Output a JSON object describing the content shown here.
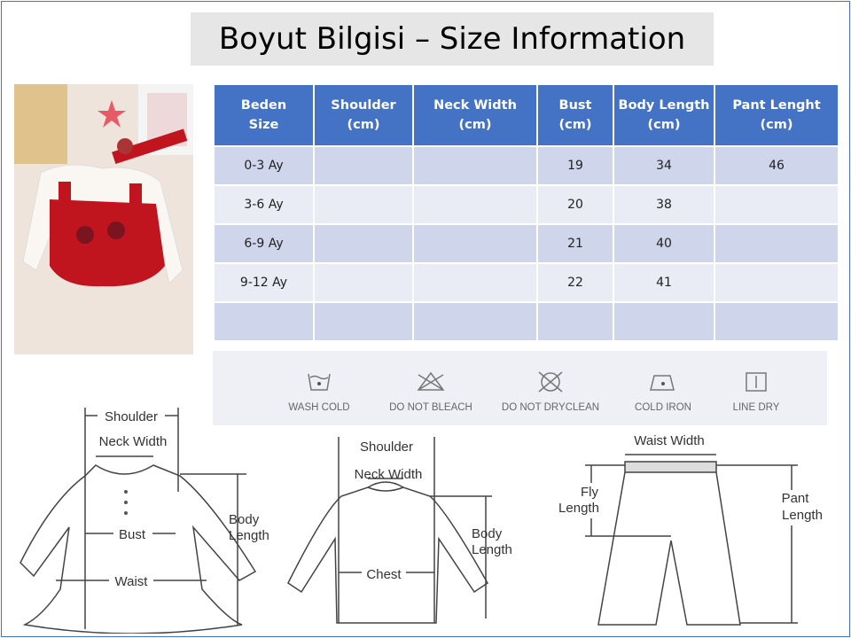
{
  "title": "Boyut Bilgisi – Size Information",
  "table": {
    "headers": [
      [
        "Beden",
        "Size"
      ],
      [
        "Shoulder",
        "(cm)"
      ],
      [
        "Neck Width",
        "(cm)"
      ],
      [
        "Bust",
        "(cm)"
      ],
      [
        "Body Length",
        "(cm)"
      ],
      [
        "Pant Lenght",
        "(cm)"
      ]
    ],
    "rows": [
      [
        "0-3 Ay",
        "",
        "",
        "19",
        "34",
        "46"
      ],
      [
        "3-6 Ay",
        "",
        "",
        "20",
        "38",
        ""
      ],
      [
        "6-9 Ay",
        "",
        "",
        "21",
        "40",
        ""
      ],
      [
        "9-12 Ay",
        "",
        "",
        "22",
        "41",
        ""
      ],
      [
        "",
        "",
        "",
        "",
        "",
        ""
      ]
    ]
  },
  "care": [
    {
      "icon": "wash-cold-icon",
      "label": "WASH COLD"
    },
    {
      "icon": "do-not-bleach-icon",
      "label": "DO NOT BLEACH"
    },
    {
      "icon": "do-not-dryclean-icon",
      "label": "DO NOT DRYCLEAN"
    },
    {
      "icon": "cold-iron-icon",
      "label": "COLD IRON"
    },
    {
      "icon": "line-dry-icon",
      "label": "LINE DRY"
    }
  ],
  "dress": {
    "shoulder": "Shoulder",
    "neck": "Neck Width",
    "bust": "Bust",
    "waist": "Waist",
    "body1": "Body",
    "body2": "Length"
  },
  "shirt": {
    "shoulder": "Shoulder",
    "neck": "Neck Width",
    "chest": "Chest",
    "body1": "Body",
    "body2": "Length"
  },
  "pants": {
    "waist": "Waist Width",
    "fly1": "Fly",
    "fly2": "Length",
    "pant1": "Pant",
    "pant2": "Length"
  },
  "colors": {
    "header": "#4472c4",
    "row_odd": "#cfd5ea",
    "row_even": "#e9ebf5",
    "product": "#c0141e"
  }
}
